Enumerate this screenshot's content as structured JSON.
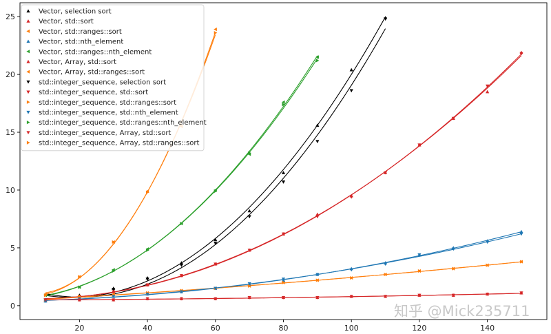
{
  "watermark": "知乎 @Mick235711",
  "chart_data": {
    "type": "scatter",
    "title": "",
    "xlabel": "",
    "ylabel": "",
    "xlim": [
      2.5,
      157.5
    ],
    "ylim": [
      -1.2,
      26.2
    ],
    "xticks": [
      20,
      40,
      60,
      80,
      100,
      120,
      140
    ],
    "yticks": [
      0,
      5,
      10,
      15,
      20,
      25
    ],
    "grid": false,
    "legend_position": "top-left",
    "fit_curves": true,
    "series": [
      {
        "name": "Vector, selection sort",
        "color": "#000000",
        "marker": "^",
        "x": [
          10,
          20,
          30,
          40,
          50,
          60,
          70,
          80,
          90,
          100,
          110
        ],
        "y": [
          0.5,
          0.9,
          1.5,
          2.4,
          3.7,
          5.7,
          8.2,
          11.5,
          15.6,
          20.4,
          24.9
        ]
      },
      {
        "name": "Vector, std::sort",
        "color": "#d62728",
        "marker": "^",
        "x": [
          10,
          20,
          30,
          40,
          50,
          60,
          70,
          80,
          90,
          100,
          110,
          120,
          130,
          140,
          150
        ],
        "y": [
          0.5,
          0.8,
          1.2,
          1.8,
          2.6,
          3.6,
          4.8,
          6.2,
          7.9,
          9.5,
          11.5,
          13.9,
          16.2,
          18.5,
          21.9
        ]
      },
      {
        "name": "Vector, std::ranges::sort",
        "color": "#ff7f0e",
        "marker": "<",
        "x": [
          10,
          20,
          30,
          40,
          50,
          60,
          70,
          80,
          90,
          100,
          110,
          120,
          130,
          140,
          150
        ],
        "y": [
          0.5,
          0.8,
          1.0,
          1.1,
          1.3,
          1.5,
          1.7,
          2.0,
          2.2,
          2.4,
          2.7,
          3.0,
          3.2,
          3.5,
          3.8
        ]
      },
      {
        "name": "Vector, std::nth_element",
        "color": "#1f77b4",
        "marker": "^",
        "x": [
          10,
          20,
          30,
          40,
          50,
          60,
          70,
          80,
          90,
          100,
          110,
          120,
          130,
          140,
          150
        ],
        "y": [
          0.4,
          0.6,
          0.8,
          1.0,
          1.2,
          1.5,
          1.8,
          2.2,
          2.7,
          3.2,
          3.7,
          4.4,
          5.0,
          5.6,
          6.4
        ]
      },
      {
        "name": "Vector, std::ranges::nth_element",
        "color": "#2ca02c",
        "marker": "<",
        "x": [
          10,
          20,
          30,
          40,
          50,
          60,
          70,
          80,
          90
        ],
        "y": [
          0.9,
          1.6,
          3.1,
          4.9,
          7.1,
          10.0,
          13.1,
          17.6,
          21.5
        ]
      },
      {
        "name": "Vector, Array, std::sort",
        "color": "#d62728",
        "marker": "^",
        "x": [
          10,
          20,
          30,
          40,
          50,
          60,
          70,
          80,
          90,
          100,
          110,
          120,
          130,
          140,
          150
        ],
        "y": [
          0.5,
          0.5,
          0.5,
          0.6,
          0.6,
          0.6,
          0.7,
          0.7,
          0.7,
          0.8,
          0.8,
          0.9,
          0.9,
          1.0,
          1.1
        ]
      },
      {
        "name": "Vector, Array, std::ranges::sort",
        "color": "#ff7f0e",
        "marker": "<",
        "x": [
          10,
          20,
          30,
          40,
          50,
          60
        ],
        "y": [
          1.0,
          2.5,
          5.5,
          9.9,
          15.5,
          23.9
        ]
      },
      {
        "name": "std::integer_sequence, selection sort",
        "color": "#000000",
        "marker": "v",
        "x": [
          10,
          20,
          30,
          40,
          50,
          60,
          70,
          80,
          90,
          100,
          110
        ],
        "y": [
          0.5,
          0.8,
          1.4,
          2.3,
          3.5,
          5.4,
          7.7,
          10.7,
          14.2,
          18.6,
          24.8
        ]
      },
      {
        "name": "std::integer_sequence, std::sort",
        "color": "#d62728",
        "marker": "v",
        "x": [
          10,
          20,
          30,
          40,
          50,
          60,
          70,
          80,
          90,
          100,
          110,
          120,
          130,
          140,
          150
        ],
        "y": [
          0.5,
          0.8,
          1.2,
          1.8,
          2.6,
          3.6,
          4.8,
          6.2,
          7.7,
          9.4,
          11.5,
          13.9,
          16.2,
          19.0,
          21.8
        ]
      },
      {
        "name": "std::integer_sequence, std::ranges::sort",
        "color": "#ff7f0e",
        "marker": ">",
        "x": [
          10,
          20,
          30,
          40,
          50,
          60,
          70,
          80,
          90,
          100,
          110,
          120,
          130,
          140,
          150
        ],
        "y": [
          0.5,
          0.8,
          0.9,
          1.1,
          1.3,
          1.5,
          1.7,
          2.0,
          2.2,
          2.4,
          2.7,
          3.0,
          3.2,
          3.5,
          3.8
        ]
      },
      {
        "name": "std::integer_sequence, std::nth_element",
        "color": "#1f77b4",
        "marker": "v",
        "x": [
          10,
          20,
          30,
          40,
          50,
          60,
          70,
          80,
          90,
          100,
          110,
          120,
          130,
          140,
          150
        ],
        "y": [
          0.4,
          0.6,
          0.8,
          1.0,
          1.2,
          1.5,
          1.9,
          2.3,
          2.7,
          3.1,
          3.6,
          4.4,
          4.9,
          5.5,
          6.2
        ]
      },
      {
        "name": "std::integer_sequence, std::ranges::nth_element",
        "color": "#2ca02c",
        "marker": ">",
        "x": [
          10,
          20,
          30,
          40,
          50,
          60,
          70,
          80,
          90
        ],
        "y": [
          0.9,
          1.6,
          3.0,
          4.8,
          7.1,
          9.9,
          13.2,
          17.4,
          21.2
        ]
      },
      {
        "name": "std::integer_sequence, Array, std::sort",
        "color": "#d62728",
        "marker": "v",
        "x": [
          10,
          20,
          30,
          40,
          50,
          60,
          70,
          80,
          90,
          100,
          110,
          120,
          130,
          140,
          150
        ],
        "y": [
          0.5,
          0.5,
          0.5,
          0.6,
          0.6,
          0.6,
          0.7,
          0.7,
          0.7,
          0.8,
          0.8,
          0.9,
          0.9,
          1.0,
          1.1
        ]
      },
      {
        "name": "std::integer_sequence, Array, std::ranges::sort",
        "color": "#ff7f0e",
        "marker": ">",
        "x": [
          10,
          20,
          30,
          40,
          50,
          60
        ],
        "y": [
          0.9,
          2.5,
          5.5,
          9.8,
          15.6,
          23.6
        ]
      }
    ]
  }
}
